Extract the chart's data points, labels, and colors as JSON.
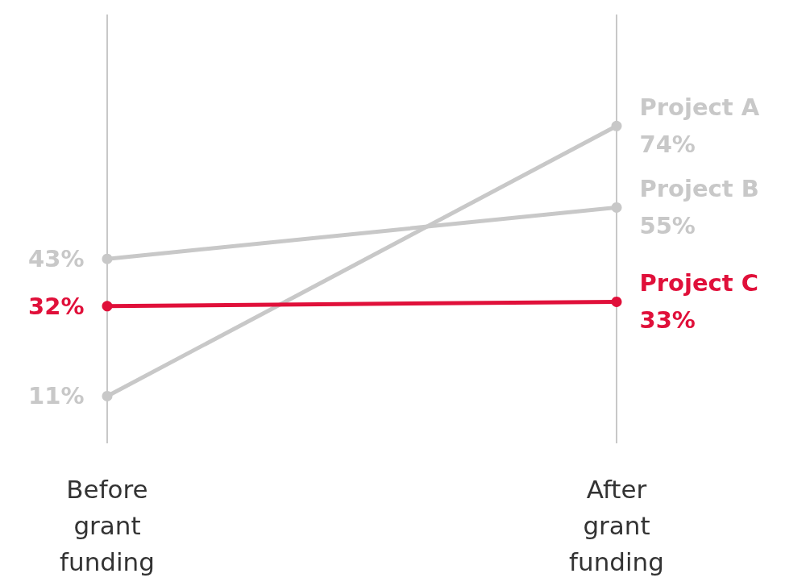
{
  "chart_data": {
    "type": "line",
    "categories": [
      "Before\ngrant\nfunding",
      "After\ngrant\nfunding"
    ],
    "series": [
      {
        "name": "Project A",
        "color": "#c8c8c8",
        "values": [
          11,
          74
        ],
        "value_labels": [
          "11%",
          "74%"
        ]
      },
      {
        "name": "Project B",
        "color": "#c8c8c8",
        "values": [
          43,
          55
        ],
        "value_labels": [
          "43%",
          "55%"
        ]
      },
      {
        "name": "Project C",
        "color": "#e0103a",
        "values": [
          32,
          33
        ],
        "value_labels": [
          "32%",
          "33%"
        ]
      }
    ],
    "ylim": [
      0,
      100
    ],
    "tick_labels": "x",
    "grid": "x",
    "legend": false,
    "marker": "circle",
    "line_style": "solid"
  }
}
